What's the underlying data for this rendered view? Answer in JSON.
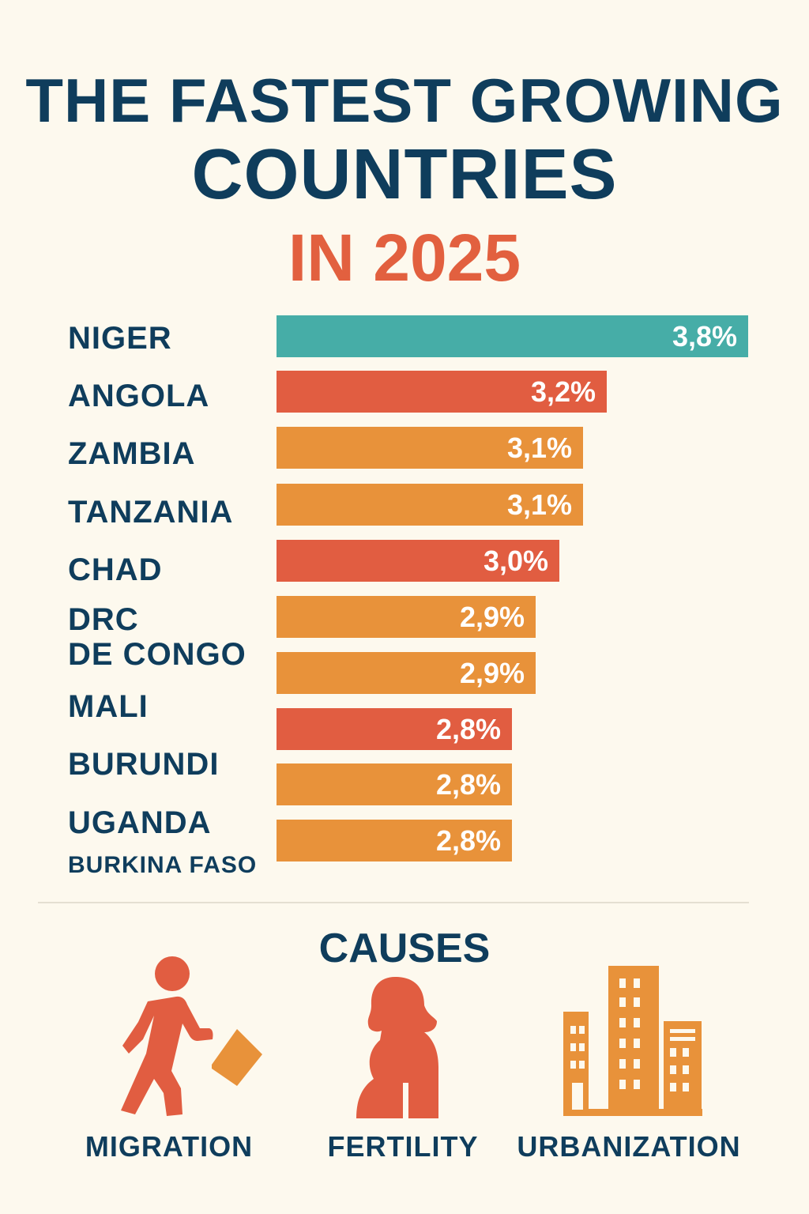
{
  "title": {
    "line1": "THE FASTEST GROWING",
    "line2": "COUNTRIES",
    "line3": "IN 2025"
  },
  "colors": {
    "background": "#fdf9ee",
    "navy": "#0f3d5c",
    "teal": "#46ada7",
    "red": "#e15d41",
    "orange": "#e8923a"
  },
  "chart_data": {
    "type": "bar",
    "orientation": "horizontal",
    "categories": [
      "NIGER",
      "ANGOLA",
      "ZAMBIA",
      "TANZANIA",
      "CHAD",
      "DRC DE CONGO",
      "MALI",
      "BURUNDI",
      "UGANDA",
      "BURKINA FASO"
    ],
    "values": [
      3.8,
      3.2,
      3.1,
      3.1,
      3.0,
      2.9,
      2.9,
      2.8,
      2.8,
      2.8
    ],
    "value_labels": [
      "3,8%",
      "3,2%",
      "3,1%",
      "3,1%",
      "3,0%",
      "2,9%",
      "2,9%",
      "2,8%",
      "2,8%",
      "2,8%"
    ],
    "row_labels": [
      "NIGER",
      "ANGOLA",
      "ZAMBIA",
      "TANZANIA",
      "CHAD",
      "DRC",
      "DE CONGO",
      "MALI",
      "BURUNDI",
      "UGANDA",
      "BURKINA FASO"
    ],
    "bar_colors": [
      "#46ada7",
      "#e15d41",
      "#e8923a",
      "#e8923a",
      "#e15d41",
      "#e8923a",
      "#e8923a",
      "#e15d41",
      "#e8923a",
      "#e8923a"
    ],
    "unit": "%",
    "grid": false,
    "legend": "none"
  },
  "causes": {
    "title": "CAUSES",
    "items": [
      {
        "label": "MIGRATION",
        "icon": "walking-person-arrow-icon"
      },
      {
        "label": "FERTILITY",
        "icon": "pregnant-woman-icon"
      },
      {
        "label": "URBANIZATION",
        "icon": "city-buildings-icon"
      }
    ]
  }
}
